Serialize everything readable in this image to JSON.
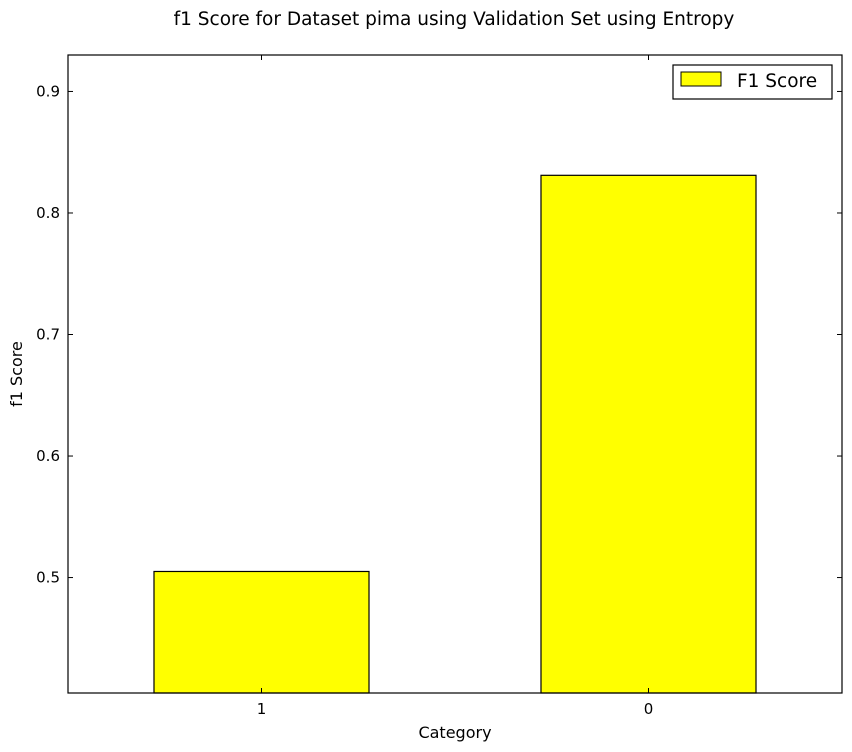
{
  "chart_data": {
    "type": "bar",
    "title": "f1 Score for Dataset pima using Validation Set using Entropy",
    "xlabel": "Category",
    "ylabel": "f1 Score",
    "categories": [
      "1",
      "0"
    ],
    "series": [
      {
        "name": "F1 Score",
        "values": [
          0.505,
          0.831
        ],
        "color": "#ffff00"
      }
    ],
    "ylim": [
      0.405,
      0.93
    ],
    "yticks": [
      0.5,
      0.6,
      0.7,
      0.8,
      0.9
    ],
    "ytick_labels": [
      "0.5",
      "0.6",
      "0.7",
      "0.8",
      "0.9"
    ],
    "grid": false,
    "legend_position": "top-right"
  }
}
